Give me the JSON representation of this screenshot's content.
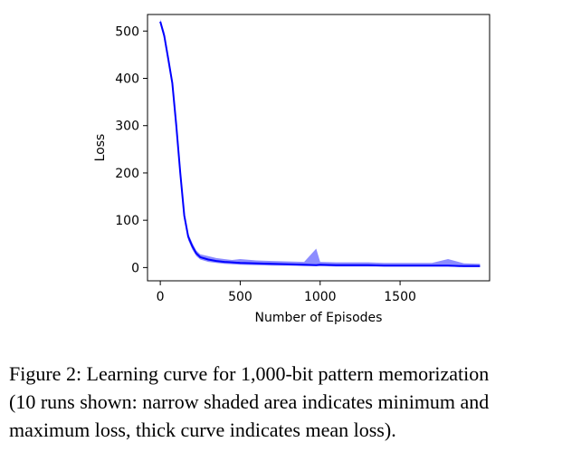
{
  "chart_data": {
    "type": "line",
    "xlabel": "Number of Episodes",
    "ylabel": "Loss",
    "xlim": [
      -80,
      2060
    ],
    "ylim": [
      -28,
      535
    ],
    "xticks": [
      0,
      500,
      1000,
      1500
    ],
    "yticks": [
      0,
      100,
      200,
      300,
      400,
      500
    ],
    "grid": false,
    "series": [
      {
        "color": "#0000ff",
        "x": [
          0,
          25,
          50,
          75,
          100,
          125,
          150,
          175,
          200,
          225,
          250,
          300,
          350,
          400,
          450,
          500,
          600,
          700,
          800,
          900,
          975,
          1000,
          1100,
          1200,
          1300,
          1400,
          1500,
          1600,
          1700,
          1800,
          1900,
          2000
        ],
        "y": [
          520,
          490,
          440,
          390,
          300,
          200,
          110,
          65,
          45,
          30,
          22,
          17,
          14,
          12,
          11,
          10,
          9,
          8,
          7,
          6,
          5,
          6,
          5,
          5,
          5,
          4,
          4,
          4,
          4,
          4,
          3,
          3
        ],
        "y_min": [
          515,
          482,
          432,
          382,
          292,
          192,
          104,
          58,
          38,
          24,
          17,
          12,
          10,
          8,
          7,
          6,
          5,
          4,
          4,
          3,
          3,
          3,
          2,
          2,
          2,
          2,
          2,
          2,
          2,
          2,
          1,
          1
        ],
        "y_max": [
          525,
          498,
          448,
          398,
          308,
          208,
          118,
          72,
          52,
          36,
          28,
          24,
          20,
          18,
          16,
          18,
          15,
          14,
          13,
          12,
          40,
          12,
          11,
          11,
          11,
          10,
          10,
          10,
          10,
          18,
          9,
          8
        ]
      }
    ]
  },
  "caption": {
    "line1": "Figure 2: Learning curve for 1,000-bit pattern memorization",
    "line2": "(10 runs shown: narrow shaded area indicates minimum and",
    "line3": "maximum loss, thick curve indicates mean loss)."
  }
}
